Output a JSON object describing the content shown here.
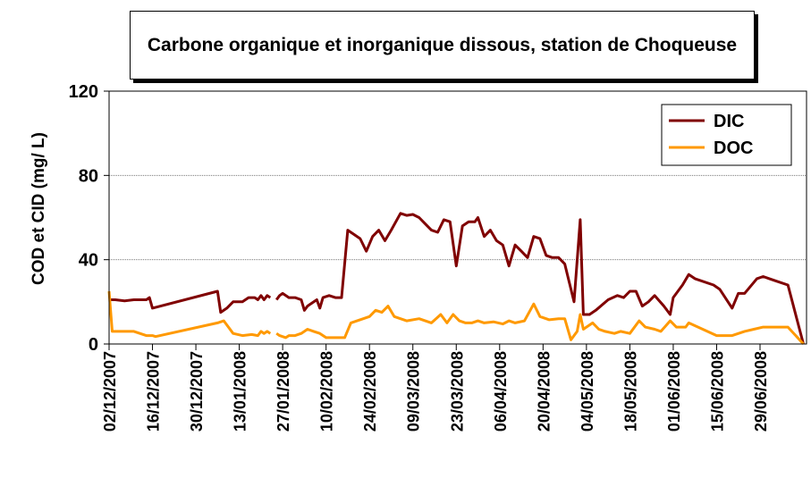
{
  "chart_data": {
    "type": "line",
    "title": "Carbone organique et inorganique dissous, station de Choqueuse",
    "y_label": "COD et CID (mg/ L)",
    "ylim": [
      0,
      120
    ],
    "yticks": [
      0,
      40,
      80,
      120
    ],
    "grid": true,
    "legend": "upper right",
    "xlim": [
      "2007-12-02",
      "2008-07-14"
    ],
    "xticks": [
      {
        "value": "2007-12-02",
        "label": "02/12/2007"
      },
      {
        "value": "2007-12-16",
        "label": "16/12/2007"
      },
      {
        "value": "2007-12-30",
        "label": "30/12/2007"
      },
      {
        "value": "2008-01-13",
        "label": "13/01/2008"
      },
      {
        "value": "2008-01-27",
        "label": "27/01/2008"
      },
      {
        "value": "2008-02-10",
        "label": "10/02/2008"
      },
      {
        "value": "2008-02-24",
        "label": "24/02/2008"
      },
      {
        "value": "2008-03-09",
        "label": "09/03/2008"
      },
      {
        "value": "2008-03-23",
        "label": "23/03/2008"
      },
      {
        "value": "2008-04-06",
        "label": "06/04/2008"
      },
      {
        "value": "2008-04-20",
        "label": "20/04/2008"
      },
      {
        "value": "2008-05-04",
        "label": "04/05/2008"
      },
      {
        "value": "2008-05-18",
        "label": "18/05/2008"
      },
      {
        "value": "2008-06-01",
        "label": "01/06/2008"
      },
      {
        "value": "2008-06-15",
        "label": "15/06/2008"
      },
      {
        "value": "2008-06-29",
        "label": "29/06/2008"
      }
    ],
    "series": [
      {
        "name": "DIC",
        "color": "#800000",
        "x": [
          "2007-12-02",
          "2007-12-04",
          "2007-12-07",
          "2007-12-10",
          "2007-12-14",
          "2007-12-15",
          "2007-12-16",
          "2008-01-06",
          "2008-01-07",
          "2008-01-09",
          "2008-01-11",
          "2008-01-14",
          "2008-01-16",
          "2008-01-18",
          "2008-01-19",
          "2008-01-20",
          "2008-01-21",
          "2008-01-22",
          "2008-01-23",
          "2008-01-24",
          "2008-01-25",
          "2008-01-26",
          "2008-01-27",
          "2008-01-29",
          "2008-01-31",
          "2008-02-02",
          "2008-02-03",
          "2008-02-04",
          "2008-02-05",
          "2008-02-07",
          "2008-02-08",
          "2008-02-09",
          "2008-02-11",
          "2008-02-13",
          "2008-02-15",
          "2008-02-17",
          "2008-02-19",
          "2008-02-21",
          "2008-02-23",
          "2008-02-25",
          "2008-02-27",
          "2008-02-29",
          "2008-03-02",
          "2008-03-05",
          "2008-03-07",
          "2008-03-09",
          "2008-03-11",
          "2008-03-13",
          "2008-03-15",
          "2008-03-17",
          "2008-03-19",
          "2008-03-21",
          "2008-03-23",
          "2008-03-25",
          "2008-03-27",
          "2008-03-29",
          "2008-03-30",
          "2008-04-01",
          "2008-04-03",
          "2008-04-05",
          "2008-04-07",
          "2008-04-09",
          "2008-04-11",
          "2008-04-13",
          "2008-04-15",
          "2008-04-17",
          "2008-04-19",
          "2008-04-21",
          "2008-04-23",
          "2008-04-25",
          "2008-04-27",
          "2008-04-30",
          "2008-05-02",
          "2008-05-03",
          "2008-05-05",
          "2008-05-07",
          "2008-05-11",
          "2008-05-14",
          "2008-05-16",
          "2008-05-18",
          "2008-05-20",
          "2008-05-22",
          "2008-05-24",
          "2008-05-26",
          "2008-05-29",
          "2008-05-31",
          "2008-06-01",
          "2008-06-04",
          "2008-06-06",
          "2008-06-08",
          "2008-06-14",
          "2008-06-16",
          "2008-06-20",
          "2008-06-22",
          "2008-06-24",
          "2008-06-28",
          "2008-06-30",
          "2008-07-02",
          "2008-07-04",
          "2008-07-08",
          "2008-07-13"
        ],
        "values": [
          21,
          21,
          20.5,
          21,
          21,
          22,
          17,
          25,
          15,
          17,
          20,
          20,
          22,
          22,
          21,
          23,
          21,
          23,
          22,
          null,
          21,
          23,
          24,
          22,
          22,
          21,
          16,
          18,
          19,
          21,
          17,
          22,
          23,
          22,
          22,
          54,
          52,
          50,
          44,
          51,
          54,
          49,
          54,
          62,
          61,
          61.5,
          60,
          57,
          54,
          53,
          59,
          58,
          37,
          56,
          58,
          58,
          60,
          51,
          54,
          49,
          47,
          37,
          47,
          44,
          41,
          51,
          50,
          42,
          41,
          41,
          38,
          20,
          59,
          14,
          14,
          16,
          21,
          23,
          22,
          25,
          25,
          18,
          20,
          23,
          18,
          14,
          22,
          28,
          33,
          31,
          28,
          26,
          17,
          24,
          24,
          31,
          32,
          31,
          30,
          28,
          0
        ]
      },
      {
        "name": "DOC",
        "color": "#ff9900",
        "x": [
          "2007-12-02",
          "2007-12-03",
          "2007-12-07",
          "2007-12-10",
          "2007-12-14",
          "2007-12-16",
          "2007-12-17",
          "2008-01-06",
          "2008-01-08",
          "2008-01-11",
          "2008-01-14",
          "2008-01-17",
          "2008-01-19",
          "2008-01-20",
          "2008-01-21",
          "2008-01-22",
          "2008-01-23",
          "2008-01-24",
          "2008-01-25",
          "2008-01-26",
          "2008-01-28",
          "2008-01-29",
          "2008-01-31",
          "2008-02-02",
          "2008-02-03",
          "2008-02-04",
          "2008-02-06",
          "2008-02-08",
          "2008-02-10",
          "2008-02-13",
          "2008-02-16",
          "2008-02-18",
          "2008-02-22",
          "2008-02-24",
          "2008-02-26",
          "2008-02-28",
          "2008-03-01",
          "2008-03-03",
          "2008-03-07",
          "2008-03-11",
          "2008-03-15",
          "2008-03-18",
          "2008-03-20",
          "2008-03-22",
          "2008-03-24",
          "2008-03-26",
          "2008-03-28",
          "2008-03-30",
          "2008-04-01",
          "2008-04-04",
          "2008-04-07",
          "2008-04-09",
          "2008-04-11",
          "2008-04-14",
          "2008-04-17",
          "2008-04-19",
          "2008-04-22",
          "2008-04-25",
          "2008-04-27",
          "2008-04-29",
          "2008-05-01",
          "2008-05-02",
          "2008-05-03",
          "2008-05-06",
          "2008-05-08",
          "2008-05-10",
          "2008-05-13",
          "2008-05-15",
          "2008-05-18",
          "2008-05-21",
          "2008-05-23",
          "2008-05-26",
          "2008-05-28",
          "2008-05-31",
          "2008-06-02",
          "2008-06-05",
          "2008-06-06",
          "2008-06-09",
          "2008-06-12",
          "2008-06-15",
          "2008-06-20",
          "2008-06-24",
          "2008-06-27",
          "2008-06-30",
          "2008-07-05",
          "2008-07-08",
          "2008-07-13"
        ],
        "values": [
          25,
          6,
          6,
          6,
          4,
          4,
          3.5,
          10,
          11,
          5,
          4,
          4.5,
          4,
          6,
          5,
          6,
          5,
          null,
          5,
          4,
          3,
          4,
          4,
          5,
          6,
          7,
          6,
          5,
          3,
          3,
          3,
          10,
          12,
          13,
          16,
          15,
          18,
          13,
          11,
          12,
          10,
          14,
          10,
          14,
          11,
          10,
          10,
          11,
          10,
          10.5,
          9.5,
          11,
          10,
          11,
          19,
          13,
          11.5,
          12,
          12,
          2,
          6,
          14,
          7,
          10,
          7,
          6,
          5,
          6,
          5,
          11,
          8,
          7,
          6,
          11,
          8,
          8,
          10,
          8,
          6,
          4,
          4,
          6,
          7,
          8,
          8,
          8,
          0
        ]
      }
    ]
  }
}
